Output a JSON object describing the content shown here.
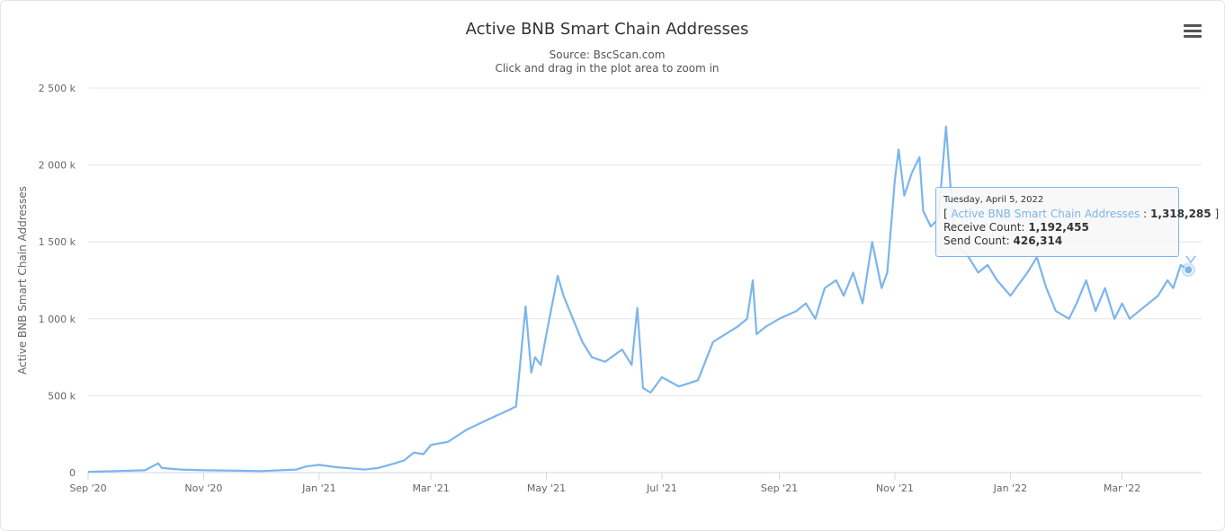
{
  "chart_data": {
    "type": "line",
    "title": "Active BNB Smart Chain Addresses",
    "subtitle": "Source: BscScan.com",
    "subtitle2": "Click and drag in the plot area to zoom in",
    "ylabel": "Active BNB Smart Chain Addresses",
    "xlabel": "",
    "ylim": [
      0,
      2500000
    ],
    "yticks": [
      0,
      500000,
      1000000,
      1500000,
      2000000,
      2500000
    ],
    "ytick_labels": [
      "0",
      "500 k",
      "1 000 k",
      "1 500 k",
      "2 000 k",
      "2 500 k"
    ],
    "xticks": [
      "2020-09-01",
      "2020-11-01",
      "2021-01-01",
      "2021-03-01",
      "2021-05-01",
      "2021-07-01",
      "2021-09-01",
      "2021-11-01",
      "2022-01-01",
      "2022-03-01"
    ],
    "xtick_labels": [
      "Sep '20",
      "Nov '20",
      "Jan '21",
      "Mar '21",
      "May '21",
      "Jul '21",
      "Sep '21",
      "Nov '21",
      "Jan '22",
      "Mar '22"
    ],
    "xlim": [
      "2020-09-01",
      "2022-04-12"
    ],
    "grid": true,
    "legend": "none",
    "series": [
      {
        "color": "#7cb5ec",
        "x": [
          "2020-09-01",
          "2020-09-15",
          "2020-10-01",
          "2020-10-08",
          "2020-10-10",
          "2020-10-20",
          "2020-11-01",
          "2020-11-20",
          "2020-12-01",
          "2020-12-20",
          "2020-12-25",
          "2021-01-01",
          "2021-01-10",
          "2021-01-20",
          "2021-01-25",
          "2021-02-01",
          "2021-02-10",
          "2021-02-15",
          "2021-02-20",
          "2021-02-25",
          "2021-03-01",
          "2021-03-10",
          "2021-03-20",
          "2021-04-01",
          "2021-04-10",
          "2021-04-15",
          "2021-04-20",
          "2021-04-23",
          "2021-04-25",
          "2021-04-28",
          "2021-05-01",
          "2021-05-07",
          "2021-05-10",
          "2021-05-15",
          "2021-05-20",
          "2021-05-25",
          "2021-06-01",
          "2021-06-10",
          "2021-06-15",
          "2021-06-18",
          "2021-06-21",
          "2021-06-25",
          "2021-07-01",
          "2021-07-10",
          "2021-07-20",
          "2021-07-28",
          "2021-08-01",
          "2021-08-10",
          "2021-08-15",
          "2021-08-18",
          "2021-08-20",
          "2021-08-25",
          "2021-09-01",
          "2021-09-10",
          "2021-09-15",
          "2021-09-20",
          "2021-09-25",
          "2021-10-01",
          "2021-10-05",
          "2021-10-10",
          "2021-10-15",
          "2021-10-20",
          "2021-10-25",
          "2021-10-28",
          "2021-11-01",
          "2021-11-03",
          "2021-11-06",
          "2021-11-10",
          "2021-11-14",
          "2021-11-16",
          "2021-11-20",
          "2021-11-24",
          "2021-11-28",
          "2021-12-02",
          "2021-12-06",
          "2021-12-10",
          "2021-12-15",
          "2021-12-20",
          "2021-12-25",
          "2022-01-01",
          "2022-01-10",
          "2022-01-15",
          "2022-01-20",
          "2022-01-25",
          "2022-02-01",
          "2022-02-05",
          "2022-02-10",
          "2022-02-15",
          "2022-02-20",
          "2022-02-25",
          "2022-03-01",
          "2022-03-05",
          "2022-03-10",
          "2022-03-15",
          "2022-03-20",
          "2022-03-25",
          "2022-03-28",
          "2022-04-01",
          "2022-04-05"
        ],
        "values": [
          5000,
          10000,
          15000,
          60000,
          30000,
          20000,
          15000,
          12000,
          10000,
          20000,
          40000,
          50000,
          35000,
          25000,
          20000,
          30000,
          60000,
          80000,
          130000,
          120000,
          180000,
          200000,
          280000,
          350000,
          400000,
          430000,
          1080000,
          650000,
          750000,
          700000,
          900000,
          1280000,
          1150000,
          1000000,
          850000,
          750000,
          720000,
          800000,
          700000,
          1070000,
          550000,
          520000,
          620000,
          560000,
          600000,
          850000,
          880000,
          950000,
          1000000,
          1250000,
          900000,
          950000,
          1000000,
          1050000,
          1100000,
          1000000,
          1200000,
          1250000,
          1150000,
          1300000,
          1100000,
          1500000,
          1200000,
          1300000,
          1900000,
          2100000,
          1800000,
          1950000,
          2050000,
          1700000,
          1600000,
          1650000,
          2250000,
          1600000,
          1450000,
          1400000,
          1300000,
          1350000,
          1250000,
          1150000,
          1300000,
          1400000,
          1200000,
          1050000,
          1000000,
          1100000,
          1250000,
          1050000,
          1200000,
          1000000,
          1100000,
          1000000,
          1050000,
          1100000,
          1150000,
          1250000,
          1200000,
          1350000,
          1318285
        ]
      }
    ],
    "tooltip": {
      "date": "Tuesday, April 5, 2022",
      "open_bracket": "[",
      "series_label": "Active BNB Smart Chain Addresses",
      "separator": ":",
      "value": "1,318,285",
      "close_bracket": "]",
      "receive_label": "Receive Count:",
      "receive_value": "1,192,455",
      "send_label": "Send Count:",
      "send_value": "426,314"
    }
  },
  "menu": {
    "icon": "hamburger-menu-icon"
  }
}
